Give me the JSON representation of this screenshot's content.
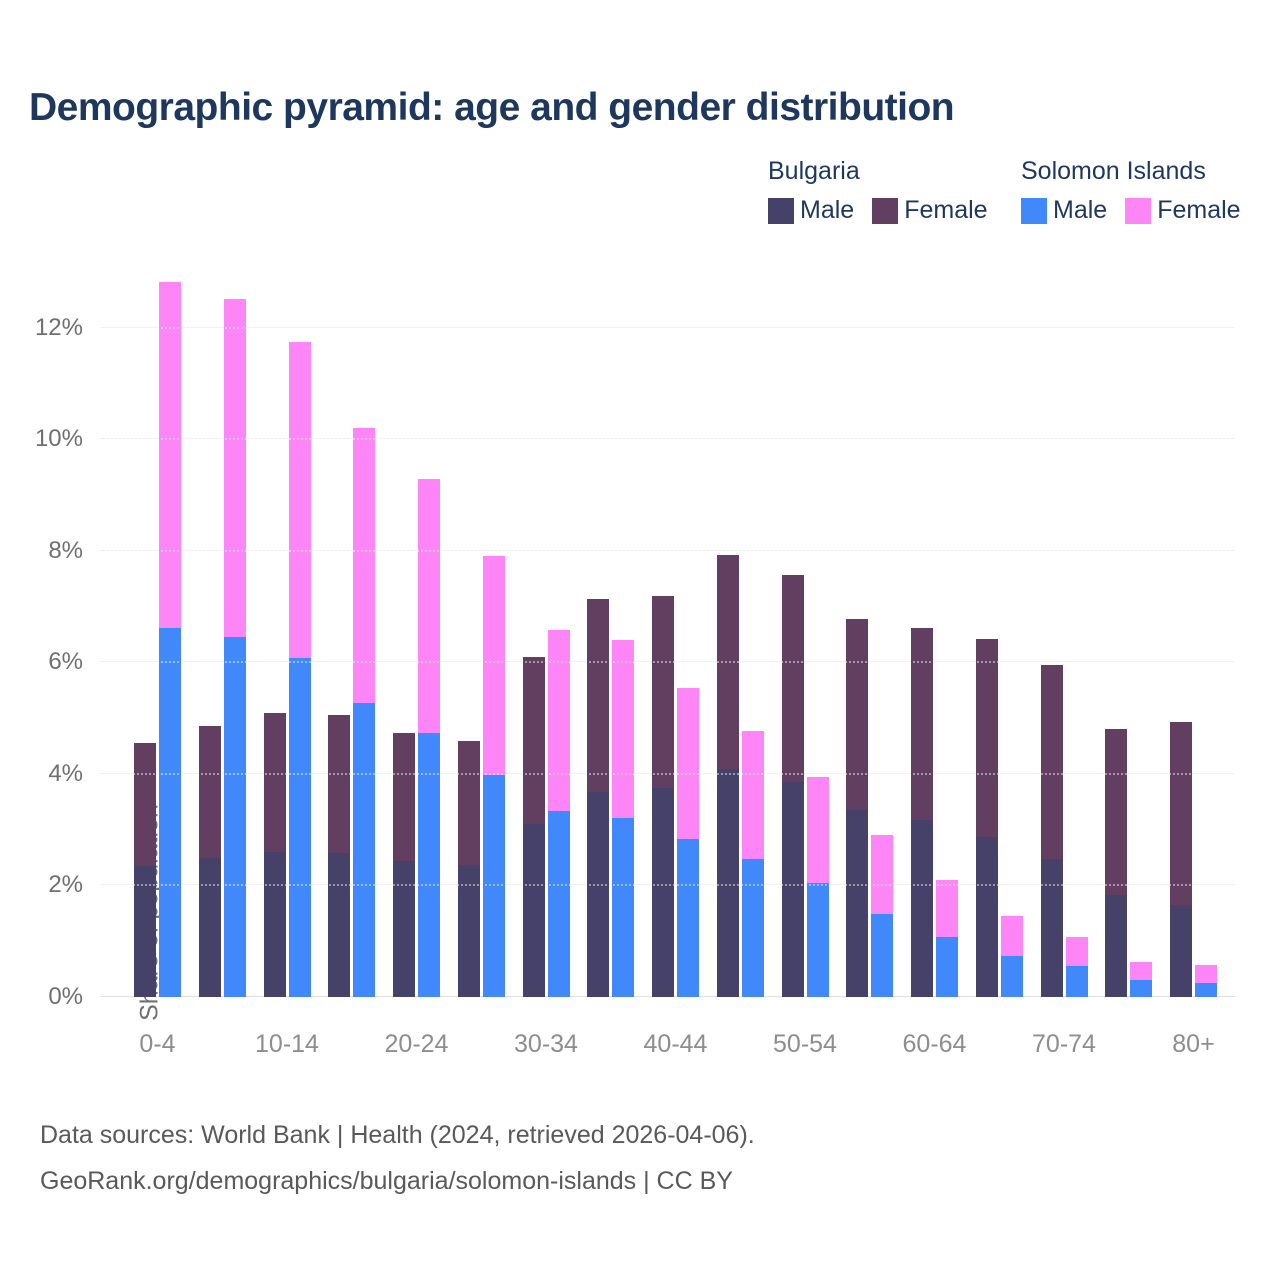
{
  "title": "Demographic pyramid: age and gender distribution",
  "colors": {
    "title_text": "#1e375c",
    "bulgaria_male": "#454169",
    "bulgaria_female": "#623f60",
    "solomon_male": "#4189fa",
    "solomon_female": "#fd85f6",
    "gridline": "#ededed",
    "axis_text": "#6f6f6f",
    "xtick_text": "#8d8d8d",
    "footer_text": "#595959"
  },
  "legend": {
    "groups": [
      {
        "name": "Bulgaria",
        "items": [
          {
            "label": "Male",
            "color": "#454169"
          },
          {
            "label": "Female",
            "color": "#623f60"
          }
        ]
      },
      {
        "name": "Solomon Islands",
        "items": [
          {
            "label": "Male",
            "color": "#4189fa"
          },
          {
            "label": "Female",
            "color": "#fd85f6"
          }
        ]
      }
    ]
  },
  "chart_data": {
    "type": "bar",
    "stacked_pairs": "Two stacked bars per age group: Bulgaria (male+female) and Solomon Islands (male+female), values are % of each country's population",
    "title": "Demographic pyramid: age and gender distribution",
    "xlabel": "",
    "ylabel": "Share of population",
    "ylim": [
      0,
      13
    ],
    "grid": true,
    "legend_position": "top-right",
    "yticks": [
      {
        "label": "0%",
        "value": 0
      },
      {
        "label": "2%",
        "value": 2
      },
      {
        "label": "4%",
        "value": 4
      },
      {
        "label": "6%",
        "value": 6
      },
      {
        "label": "8%",
        "value": 8
      },
      {
        "label": "10%",
        "value": 10
      },
      {
        "label": "12%",
        "value": 12
      }
    ],
    "categories": [
      "0-4",
      "5-9",
      "10-14",
      "15-19",
      "20-24",
      "25-29",
      "30-34",
      "35-39",
      "40-44",
      "45-49",
      "50-54",
      "55-59",
      "60-64",
      "65-69",
      "70-74",
      "75-79",
      "80+"
    ],
    "x_tick_labels_shown": [
      "0-4",
      "10-14",
      "20-24",
      "30-34",
      "40-44",
      "50-54",
      "60-64",
      "70-74",
      "80+"
    ],
    "series": [
      {
        "name": "Bulgaria Male",
        "color": "#454169",
        "stack": "bulgaria",
        "values": [
          2.35,
          2.49,
          2.6,
          2.58,
          2.43,
          2.36,
          3.11,
          3.68,
          3.74,
          4.08,
          3.86,
          3.36,
          3.17,
          2.87,
          2.47,
          1.83,
          1.65
        ]
      },
      {
        "name": "Bulgaria Female",
        "color": "#623f60",
        "stack": "bulgaria",
        "values": [
          2.21,
          2.37,
          2.5,
          2.47,
          2.3,
          2.23,
          2.98,
          3.45,
          3.45,
          3.85,
          3.7,
          3.42,
          3.44,
          3.55,
          3.48,
          2.97,
          3.28
        ]
      },
      {
        "name": "Solomon Islands Male",
        "color": "#4189fa",
        "stack": "solomon",
        "values": [
          6.61,
          6.45,
          6.07,
          5.28,
          4.73,
          3.98,
          3.33,
          3.21,
          2.83,
          2.47,
          2.04,
          1.49,
          1.08,
          0.74,
          0.55,
          0.31,
          0.26
        ]
      },
      {
        "name": "Solomon Islands Female",
        "color": "#fd85f6",
        "stack": "solomon",
        "values": [
          6.21,
          6.07,
          5.68,
          4.93,
          4.56,
          3.93,
          3.25,
          3.19,
          2.71,
          2.3,
          1.9,
          1.41,
          1.02,
          0.72,
          0.53,
          0.31,
          0.31
        ]
      }
    ]
  },
  "footer": {
    "line1": "Data sources: World Bank | Health (2024, retrieved 2026-04-06).",
    "line2": "GeoRank.org/demographics/bulgaria/solomon-islands | CC BY"
  }
}
